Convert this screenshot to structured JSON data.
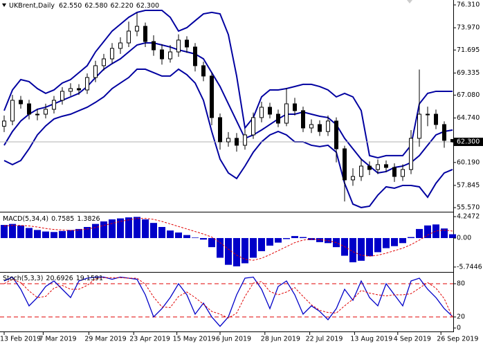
{
  "chart_data": [
    {
      "type": "candlestick",
      "title": "UKBrent,Daily",
      "ohlc_labels": [
        "62.550",
        "62.580",
        "62.220",
        "62.300"
      ],
      "open": [
        63.9,
        64.43,
        66.55,
        66.19,
        65.13,
        65.13,
        65.63,
        66.55,
        67.47,
        67.75,
        67.61,
        68.88,
        70.09,
        70.79,
        71.86,
        72.42,
        73.63,
        74.12,
        72.56,
        71.71,
        70.79,
        71.5,
        72.71,
        72.0,
        70.09,
        69.03,
        64.78,
        62.3,
        62.66,
        61.95,
        63.01,
        64.78,
        65.84,
        65.13,
        64.21,
        66.19,
        65.49,
        63.72,
        64.07,
        63.36,
        64.43,
        61.59,
        58.41,
        58.76,
        59.82,
        59.47,
        59.97,
        59.68,
        58.76,
        59.47,
        62.66,
        65.13,
        65.13,
        64.07,
        62.55
      ],
      "high": [
        65.0,
        67.1,
        67.0,
        66.6,
        65.7,
        66.2,
        67.0,
        67.9,
        68.3,
        68.2,
        69.3,
        70.6,
        71.3,
        72.4,
        73.0,
        74.6,
        75.5,
        74.5,
        73.2,
        72.3,
        72.2,
        73.3,
        73.1,
        72.4,
        70.5,
        69.4,
        65.2,
        63.3,
        63.2,
        63.6,
        65.3,
        66.4,
        66.3,
        65.6,
        67.8,
        66.8,
        65.9,
        64.6,
        64.5,
        65.0,
        64.8,
        61.9,
        59.6,
        60.6,
        60.3,
        60.5,
        60.4,
        60.1,
        60.0,
        63.5,
        69.7,
        65.9,
        65.6,
        64.4,
        62.58
      ],
      "low": [
        63.3,
        64.0,
        65.7,
        64.6,
        64.5,
        64.7,
        65.2,
        66.1,
        67.0,
        67.1,
        67.2,
        68.4,
        69.6,
        70.3,
        71.3,
        72.0,
        73.1,
        72.0,
        71.1,
        70.2,
        70.4,
        71.0,
        71.4,
        69.5,
        68.5,
        64.0,
        61.5,
        61.8,
        61.3,
        61.5,
        62.6,
        64.3,
        64.7,
        63.8,
        63.9,
        65.0,
        63.3,
        63.2,
        62.9,
        62.9,
        60.2,
        56.2,
        57.8,
        58.3,
        58.9,
        59.0,
        59.2,
        58.2,
        58.3,
        59.0,
        61.8,
        63.9,
        63.6,
        61.7,
        62.22
      ],
      "close": [
        64.43,
        66.55,
        66.19,
        65.13,
        65.13,
        65.63,
        66.55,
        67.47,
        67.75,
        67.61,
        68.88,
        70.09,
        70.79,
        71.86,
        72.42,
        73.63,
        74.12,
        72.56,
        71.71,
        70.79,
        71.5,
        72.71,
        72.0,
        70.09,
        69.03,
        64.78,
        62.3,
        62.66,
        61.95,
        63.01,
        64.78,
        65.84,
        65.13,
        64.21,
        66.19,
        65.49,
        63.72,
        64.07,
        63.36,
        64.43,
        61.59,
        58.41,
        58.76,
        59.82,
        59.47,
        59.97,
        59.68,
        58.76,
        59.47,
        62.66,
        65.13,
        65.13,
        64.07,
        62.45,
        62.3
      ],
      "bands": {
        "color": "#0000a0",
        "upper": [
          65.49,
          67.61,
          68.67,
          68.46,
          67.75,
          67.26,
          67.61,
          68.32,
          68.67,
          69.38,
          70.09,
          71.5,
          72.56,
          73.63,
          74.33,
          75.04,
          75.54,
          75.75,
          75.75,
          75.75,
          75.04,
          73.63,
          73.98,
          74.69,
          75.39,
          75.54,
          75.39,
          73.27,
          69.03,
          63.72,
          64.78,
          66.9,
          67.61,
          67.61,
          67.75,
          67.96,
          68.18,
          68.18,
          67.96,
          67.61,
          66.9,
          67.26,
          66.9,
          65.49,
          60.89,
          60.67,
          60.89,
          60.89,
          60.89,
          61.95,
          66.19,
          67.26,
          67.47,
          67.47,
          67.47
        ],
        "middle": [
          61.95,
          63.36,
          64.43,
          65.13,
          65.63,
          65.84,
          66.19,
          66.55,
          66.9,
          67.26,
          67.96,
          68.88,
          69.73,
          70.3,
          70.79,
          71.5,
          72.21,
          72.42,
          72.42,
          72.21,
          72.0,
          71.71,
          71.5,
          71.29,
          70.79,
          69.38,
          67.96,
          66.19,
          64.43,
          62.66,
          63.01,
          63.51,
          64.07,
          64.64,
          65.13,
          65.13,
          65.35,
          65.13,
          64.92,
          64.78,
          64.07,
          62.66,
          61.59,
          60.53,
          59.82,
          59.12,
          59.26,
          59.68,
          59.82,
          60.18,
          60.89,
          61.95,
          63.01,
          63.36,
          63.51
        ],
        "lower": [
          60.39,
          59.97,
          60.39,
          61.59,
          63.01,
          63.93,
          64.64,
          64.92,
          65.13,
          65.49,
          65.84,
          66.34,
          66.9,
          67.75,
          68.32,
          68.88,
          69.73,
          69.73,
          69.38,
          69.03,
          69.03,
          69.73,
          69.17,
          68.32,
          66.55,
          63.36,
          60.53,
          59.12,
          58.55,
          59.82,
          61.24,
          62.3,
          63.01,
          63.36,
          63.01,
          62.3,
          62.3,
          61.95,
          61.81,
          61.95,
          61.24,
          58.06,
          55.93,
          55.58,
          55.72,
          56.85,
          57.7,
          57.56,
          57.84,
          57.84,
          57.7,
          56.64,
          58.06,
          59.12,
          59.47
        ]
      },
      "last_price": {
        "value": 62.3,
        "label": "62.300"
      },
      "ylim": [
        55.22,
        76.81
      ],
      "yticks": [
        {
          "value": 76.31,
          "label": "76.310"
        },
        {
          "value": 73.97,
          "label": "73.970"
        },
        {
          "value": 71.695,
          "label": "71.695"
        },
        {
          "value": 69.335,
          "label": "69.335"
        },
        {
          "value": 67.08,
          "label": "67.080"
        },
        {
          "value": 64.74,
          "label": "64.740"
        },
        {
          "value": 60.19,
          "label": "60.190"
        },
        {
          "value": 57.845,
          "label": "57.845"
        },
        {
          "value": 55.57,
          "label": "55.570"
        }
      ]
    },
    {
      "type": "bar",
      "title": "MACD(5,34,4)",
      "indicator_labels": [
        "0.7585",
        "1.3826"
      ],
      "color": "#0000c8",
      "values": [
        2.6,
        2.8,
        2.5,
        2.0,
        1.6,
        1.3,
        1.2,
        1.4,
        1.6,
        1.8,
        2.2,
        2.8,
        3.3,
        3.7,
        3.9,
        4.1,
        4.2,
        3.7,
        3.0,
        2.2,
        1.5,
        1.1,
        0.6,
        0.1,
        -0.3,
        -1.8,
        -3.9,
        -5.3,
        -5.6,
        -5.0,
        -3.9,
        -2.6,
        -1.5,
        -0.9,
        -0.2,
        0.4,
        0.2,
        -0.4,
        -0.8,
        -1.0,
        -1.8,
        -3.5,
        -4.8,
        -4.5,
        -3.6,
        -2.8,
        -2.0,
        -1.6,
        -1.0,
        0.2,
        1.8,
        2.5,
        2.7,
        1.9,
        0.7585
      ],
      "signal": [
        2.4,
        2.5,
        2.5,
        2.4,
        2.2,
        1.9,
        1.7,
        1.6,
        1.5,
        1.6,
        1.8,
        2.1,
        2.5,
        2.9,
        3.3,
        3.6,
        3.9,
        3.9,
        3.7,
        3.3,
        2.8,
        2.3,
        1.8,
        1.3,
        0.8,
        0.2,
        -0.9,
        -2.2,
        -3.4,
        -4.2,
        -4.4,
        -4.0,
        -3.3,
        -2.5,
        -1.7,
        -0.9,
        -0.4,
        -0.2,
        -0.3,
        -0.5,
        -0.9,
        -1.7,
        -2.7,
        -3.4,
        -3.6,
        -3.4,
        -3.0,
        -2.5,
        -2.0,
        -1.3,
        -0.4,
        0.6,
        1.4,
        1.6,
        1.3826
      ],
      "signal_color": "#e00000",
      "ylim": [
        -6.58,
        5.08
      ],
      "yticks": [
        4.2472,
        {
          "value": 0,
          "label": "0.00"
        },
        -5.7446
      ]
    },
    {
      "type": "line",
      "title": "Stoch(5,3,3)",
      "indicator_labels": [
        "20.6926",
        "19.1591"
      ],
      "k": [
        85,
        92,
        70,
        40,
        55,
        75,
        85,
        70,
        55,
        85,
        90,
        92,
        92,
        88,
        92,
        90,
        88,
        60,
        20,
        35,
        55,
        80,
        60,
        25,
        45,
        20,
        3,
        20,
        60,
        90,
        92,
        70,
        35,
        75,
        85,
        60,
        25,
        40,
        30,
        15,
        35,
        70,
        50,
        85,
        55,
        40,
        80,
        60,
        40,
        85,
        90,
        70,
        55,
        35,
        20.6926
      ],
      "d": [
        80,
        88,
        82,
        67,
        55,
        57,
        72,
        77,
        70,
        70,
        77,
        89,
        91,
        91,
        91,
        90,
        90,
        79,
        56,
        38,
        37,
        57,
        65,
        55,
        43,
        30,
        25,
        18,
        27,
        57,
        81,
        84,
        66,
        60,
        65,
        73,
        57,
        42,
        32,
        28,
        27,
        40,
        52,
        68,
        63,
        60,
        58,
        60,
        60,
        62,
        72,
        82,
        72,
        53,
        19.1591
      ],
      "k_color": "#0000c8",
      "d_color": "#e00000",
      "levels": [
        80,
        20
      ],
      "ylim": [
        -5,
        100
      ],
      "yticks": [
        80,
        20,
        0
      ],
      "xticks": [
        {
          "value": 0,
          "label": "13 Feb 2019"
        },
        {
          "value": 4.7,
          "label": "7 Mar 2019"
        },
        {
          "value": 10.2,
          "label": "29 Mar 2019"
        },
        {
          "value": 15.6,
          "label": "23 Apr 2019"
        },
        {
          "value": 20.8,
          "label": "15 May 2019"
        },
        {
          "value": 26,
          "label": "6 Jun 2019"
        },
        {
          "value": 31.4,
          "label": "28 Jun 2019"
        },
        {
          "value": 36.8,
          "label": "22 Jul 2019"
        },
        {
          "value": 42.2,
          "label": "13 Aug 2019"
        },
        {
          "value": 47.4,
          "label": "4 Sep 2019"
        },
        {
          "value": 52.6,
          "label": "26 Sep 2019"
        }
      ]
    }
  ]
}
